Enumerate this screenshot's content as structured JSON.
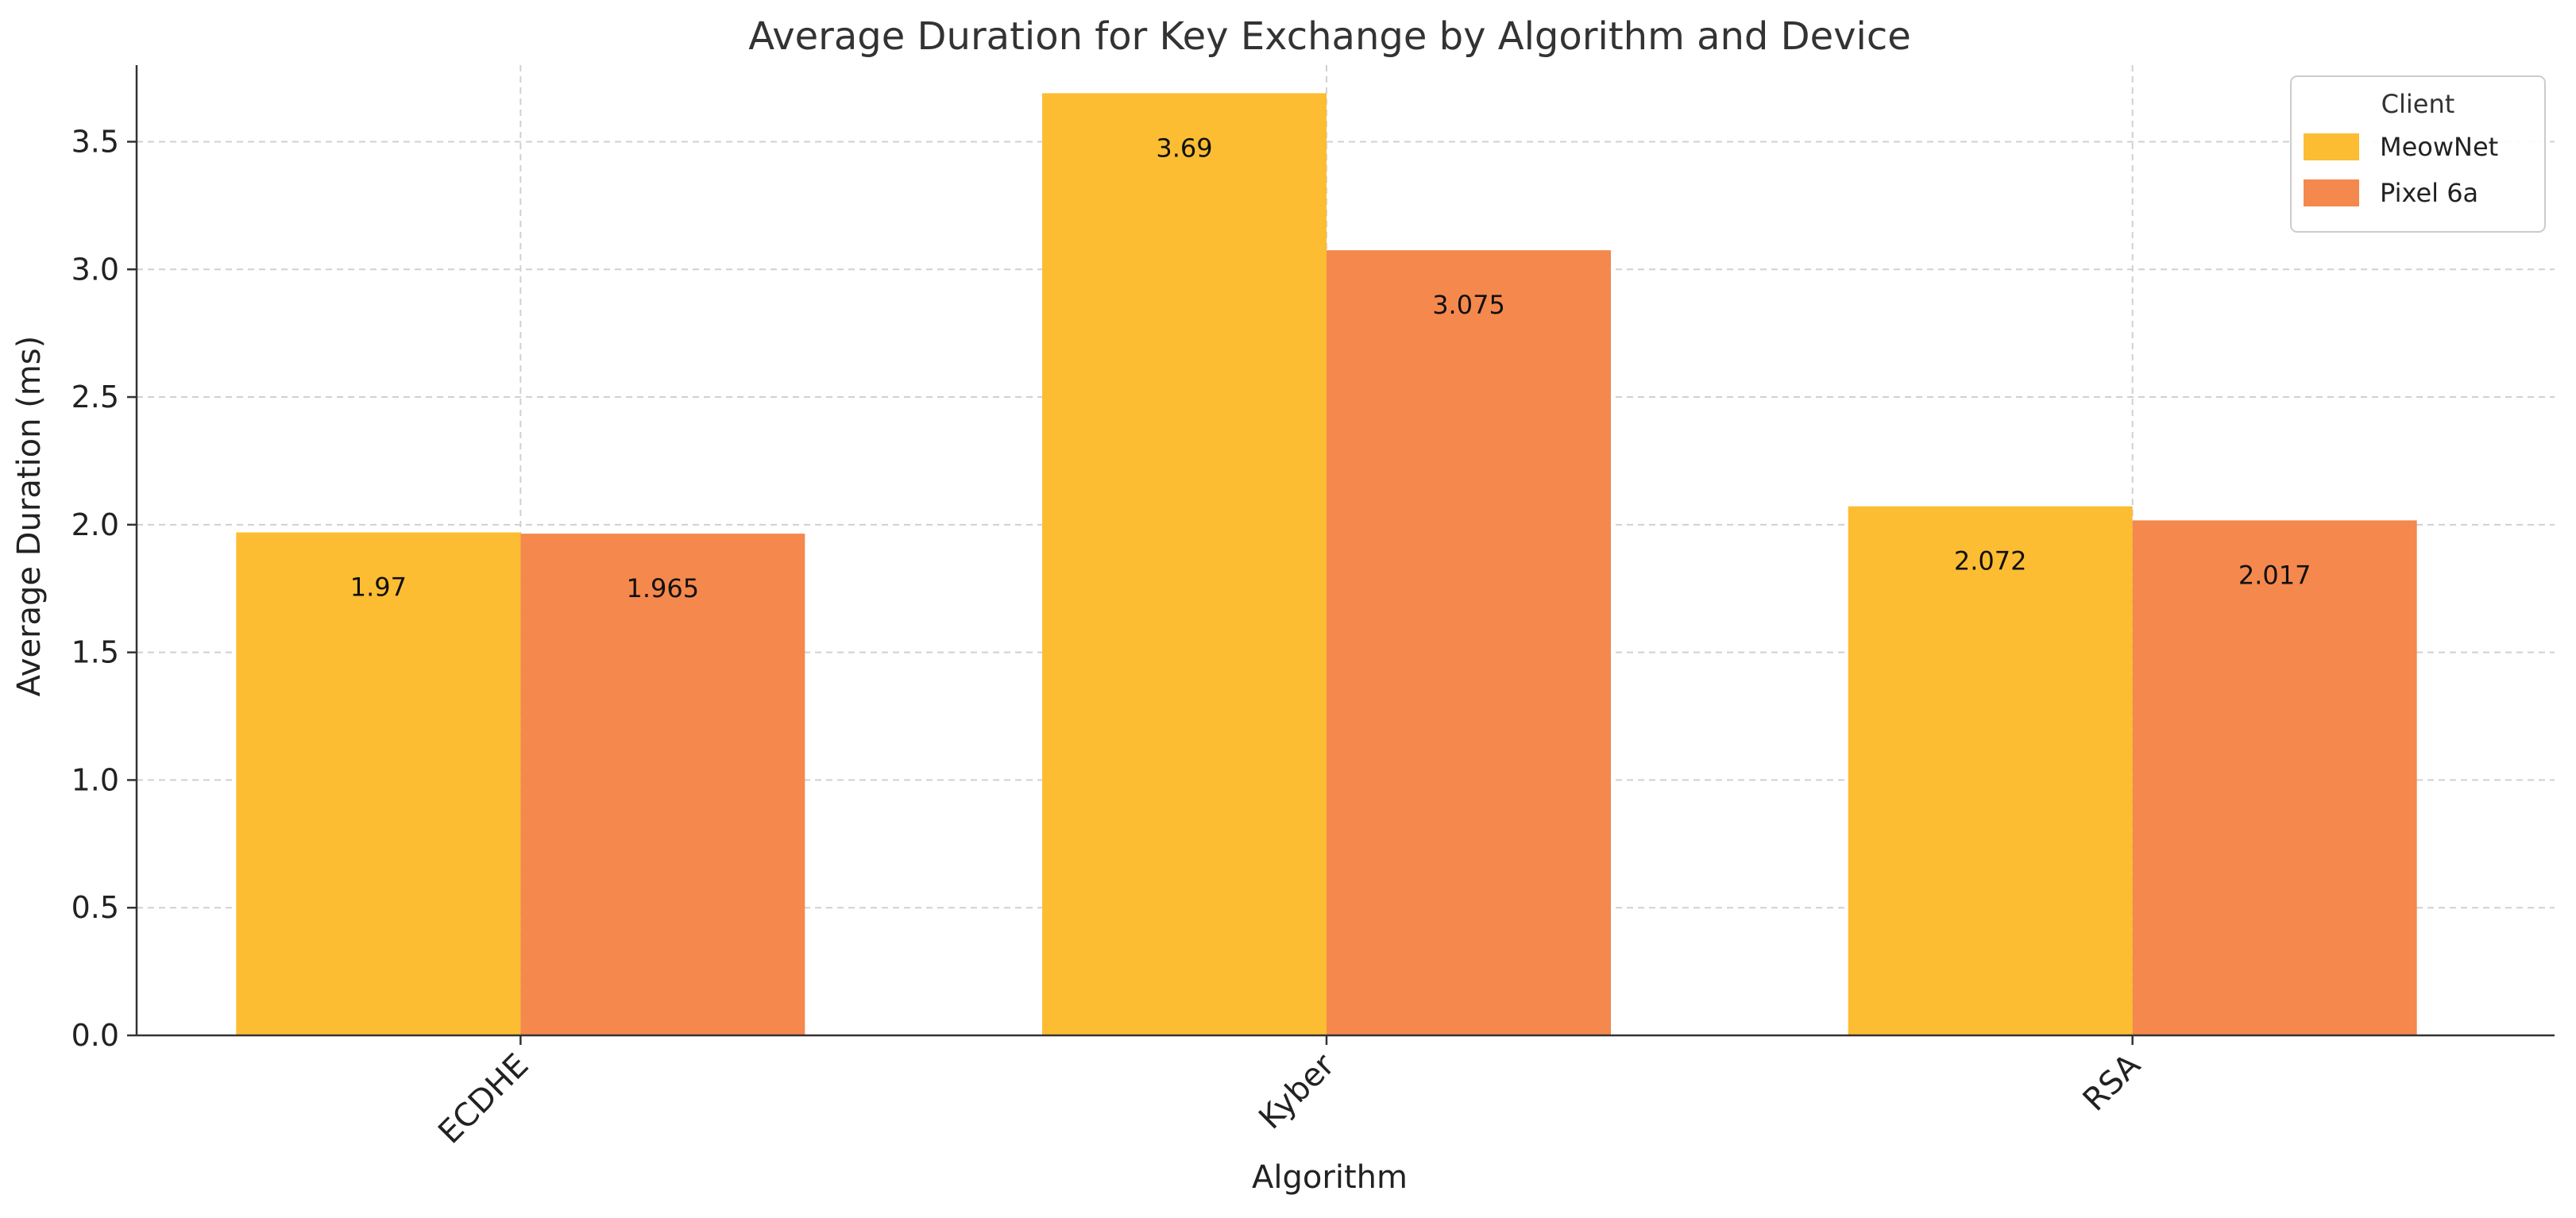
{
  "chart_data": {
    "type": "bar",
    "title": "Average Duration for Key Exchange by Algorithm and Device",
    "xlabel": "Algorithm",
    "ylabel": "Average Duration (ms)",
    "categories": [
      "ECDHE",
      "Kyber",
      "RSA"
    ],
    "series": [
      {
        "name": "MeowNet",
        "color": "#FCBD33",
        "values": [
          1.97,
          3.69,
          2.072
        ],
        "value_labels": [
          "1.97",
          "3.69",
          "2.072"
        ]
      },
      {
        "name": "Pixel 6a",
        "color": "#F5884D",
        "values": [
          1.965,
          3.075,
          2.017
        ],
        "value_labels": [
          "1.965",
          "3.075",
          "2.017"
        ]
      }
    ],
    "ylim": [
      0,
      3.8
    ],
    "yticks": [
      "0.0",
      "0.5",
      "1.0",
      "1.5",
      "2.0",
      "2.5",
      "3.0",
      "3.5"
    ],
    "legend": {
      "title": "Client",
      "position": "top-right"
    },
    "grid": true
  }
}
